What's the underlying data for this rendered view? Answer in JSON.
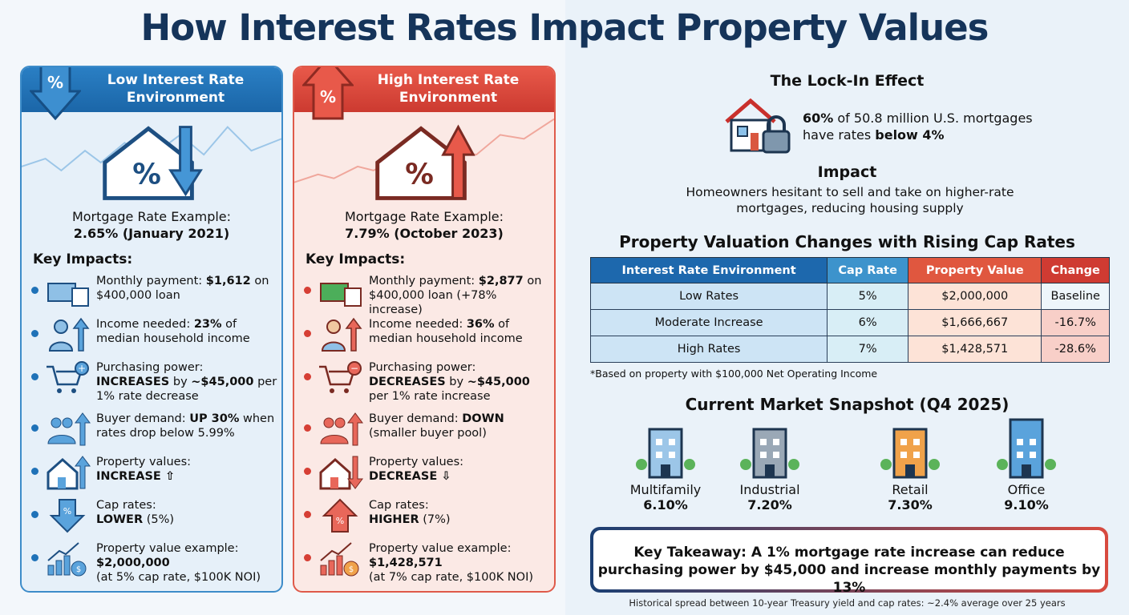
{
  "title": "How Interest Rates Impact Property Values",
  "low": {
    "header": "Low Interest Rate Environment",
    "rate_label": "Mortgage Rate Example:",
    "rate_value": "2.65% (January 2021)",
    "key_impacts": "Key Impacts:",
    "items": [
      {
        "icon": "money-calendar-icon",
        "pre": "Monthly payment: ",
        "bold": "$1,612",
        "post": " on $400,000 loan"
      },
      {
        "icon": "person-up-arrow-icon",
        "pre": "Income needed: ",
        "bold": "23%",
        "post": " of median household income"
      },
      {
        "icon": "cart-plus-icon",
        "pre": "Purchasing power: ",
        "bold": "INCREASES",
        "post": " by ",
        "bold2": "~$45,000",
        "post2": " per 1% rate decrease"
      },
      {
        "icon": "group-up-arrow-icon",
        "pre": "Buyer demand: ",
        "bold": "UP 30%",
        "post": " when rates drop below 5.99%"
      },
      {
        "icon": "house-up-arrow-icon",
        "pre": "Property values: ",
        "bold": "INCREASE ⇧",
        "post": ""
      },
      {
        "icon": "percent-down-arrow-icon",
        "pre": "Cap rates: ",
        "bold": "LOWER",
        "post": " (5%)"
      },
      {
        "icon": "chart-moneybag-icon",
        "pre": "Property value example: ",
        "bold": "$2,000,000",
        "post": " (at 5% cap rate, $100K NOI)"
      }
    ]
  },
  "high": {
    "header": "High Interest Rate Environment",
    "rate_label": "Mortgage Rate Example:",
    "rate_value": "7.79% (October 2023)",
    "key_impacts": "Key Impacts:",
    "items": [
      {
        "icon": "money-calendar-icon",
        "pre": "Monthly payment: ",
        "bold": "$2,877",
        "post": " on $400,000 loan (+78% increase)"
      },
      {
        "icon": "person-up-arrow-icon",
        "pre": "Income needed: ",
        "bold": "36%",
        "post": " of median household income"
      },
      {
        "icon": "cart-minus-icon",
        "pre": "Purchasing power: ",
        "bold": "DECREASES",
        "post": " by ",
        "bold2": "~$45,000",
        "post2": " per 1% rate increase"
      },
      {
        "icon": "group-down-arrow-icon",
        "pre": "Buyer demand: ",
        "bold": "DOWN",
        "post": " (smaller buyer pool)"
      },
      {
        "icon": "house-down-arrow-icon",
        "pre": "Property values: ",
        "bold": "DECREASE ⇩",
        "post": ""
      },
      {
        "icon": "percent-up-arrow-icon",
        "pre": "Cap rates: ",
        "bold": "HIGHER",
        "post": " (7%)"
      },
      {
        "icon": "chart-moneybag-icon",
        "pre": "Property value example: ",
        "bold": "$1,428,571",
        "post": " (at 7% cap rate, $100K NOI)"
      }
    ]
  },
  "lockin": {
    "title": "The Lock-In Effect",
    "bold1": "60%",
    "text1": " of 50.8 million U.S. mortgages have rates ",
    "bold2": "below 4%",
    "impact_title": "Impact",
    "impact_text": "Homeowners hesitant to sell and take on higher-rate mortgages, reducing housing supply"
  },
  "valuation": {
    "title": "Property Valuation Changes with Rising Cap Rates",
    "headers": [
      "Interest Rate Environment",
      "Cap Rate",
      "Property Value",
      "Change"
    ],
    "rows": [
      [
        "Low Rates",
        "5%",
        "$2,000,000",
        "Baseline"
      ],
      [
        "Moderate Increase",
        "6%",
        "$1,666,667",
        "-16.7%"
      ],
      [
        "High Rates",
        "7%",
        "$1,428,571",
        "-28.6%"
      ]
    ],
    "footnote": "*Based on property with $100,000 Net Operating Income"
  },
  "snapshot": {
    "title": "Current Market Snapshot (Q4 2025)",
    "items": [
      {
        "icon": "apartment-building-icon",
        "name": "Multifamily",
        "value": "6.10%"
      },
      {
        "icon": "warehouse-icon",
        "name": "Industrial",
        "value": "7.20%"
      },
      {
        "icon": "storefront-icon",
        "name": "Retail",
        "value": "7.30%"
      },
      {
        "icon": "office-tower-icon",
        "name": "Office",
        "value": "9.10%"
      }
    ]
  },
  "takeaway": "Key Takeaway: A 1% mortgage rate increase can reduce purchasing power by $45,000 and increase monthly payments by 13%",
  "footer": "Historical spread between 10-year Treasury yield and cap rates: ~2.4% average over 25 years",
  "colors": {
    "navy": "#15345a",
    "blue": "#1f72b8",
    "red": "#d63f35"
  }
}
